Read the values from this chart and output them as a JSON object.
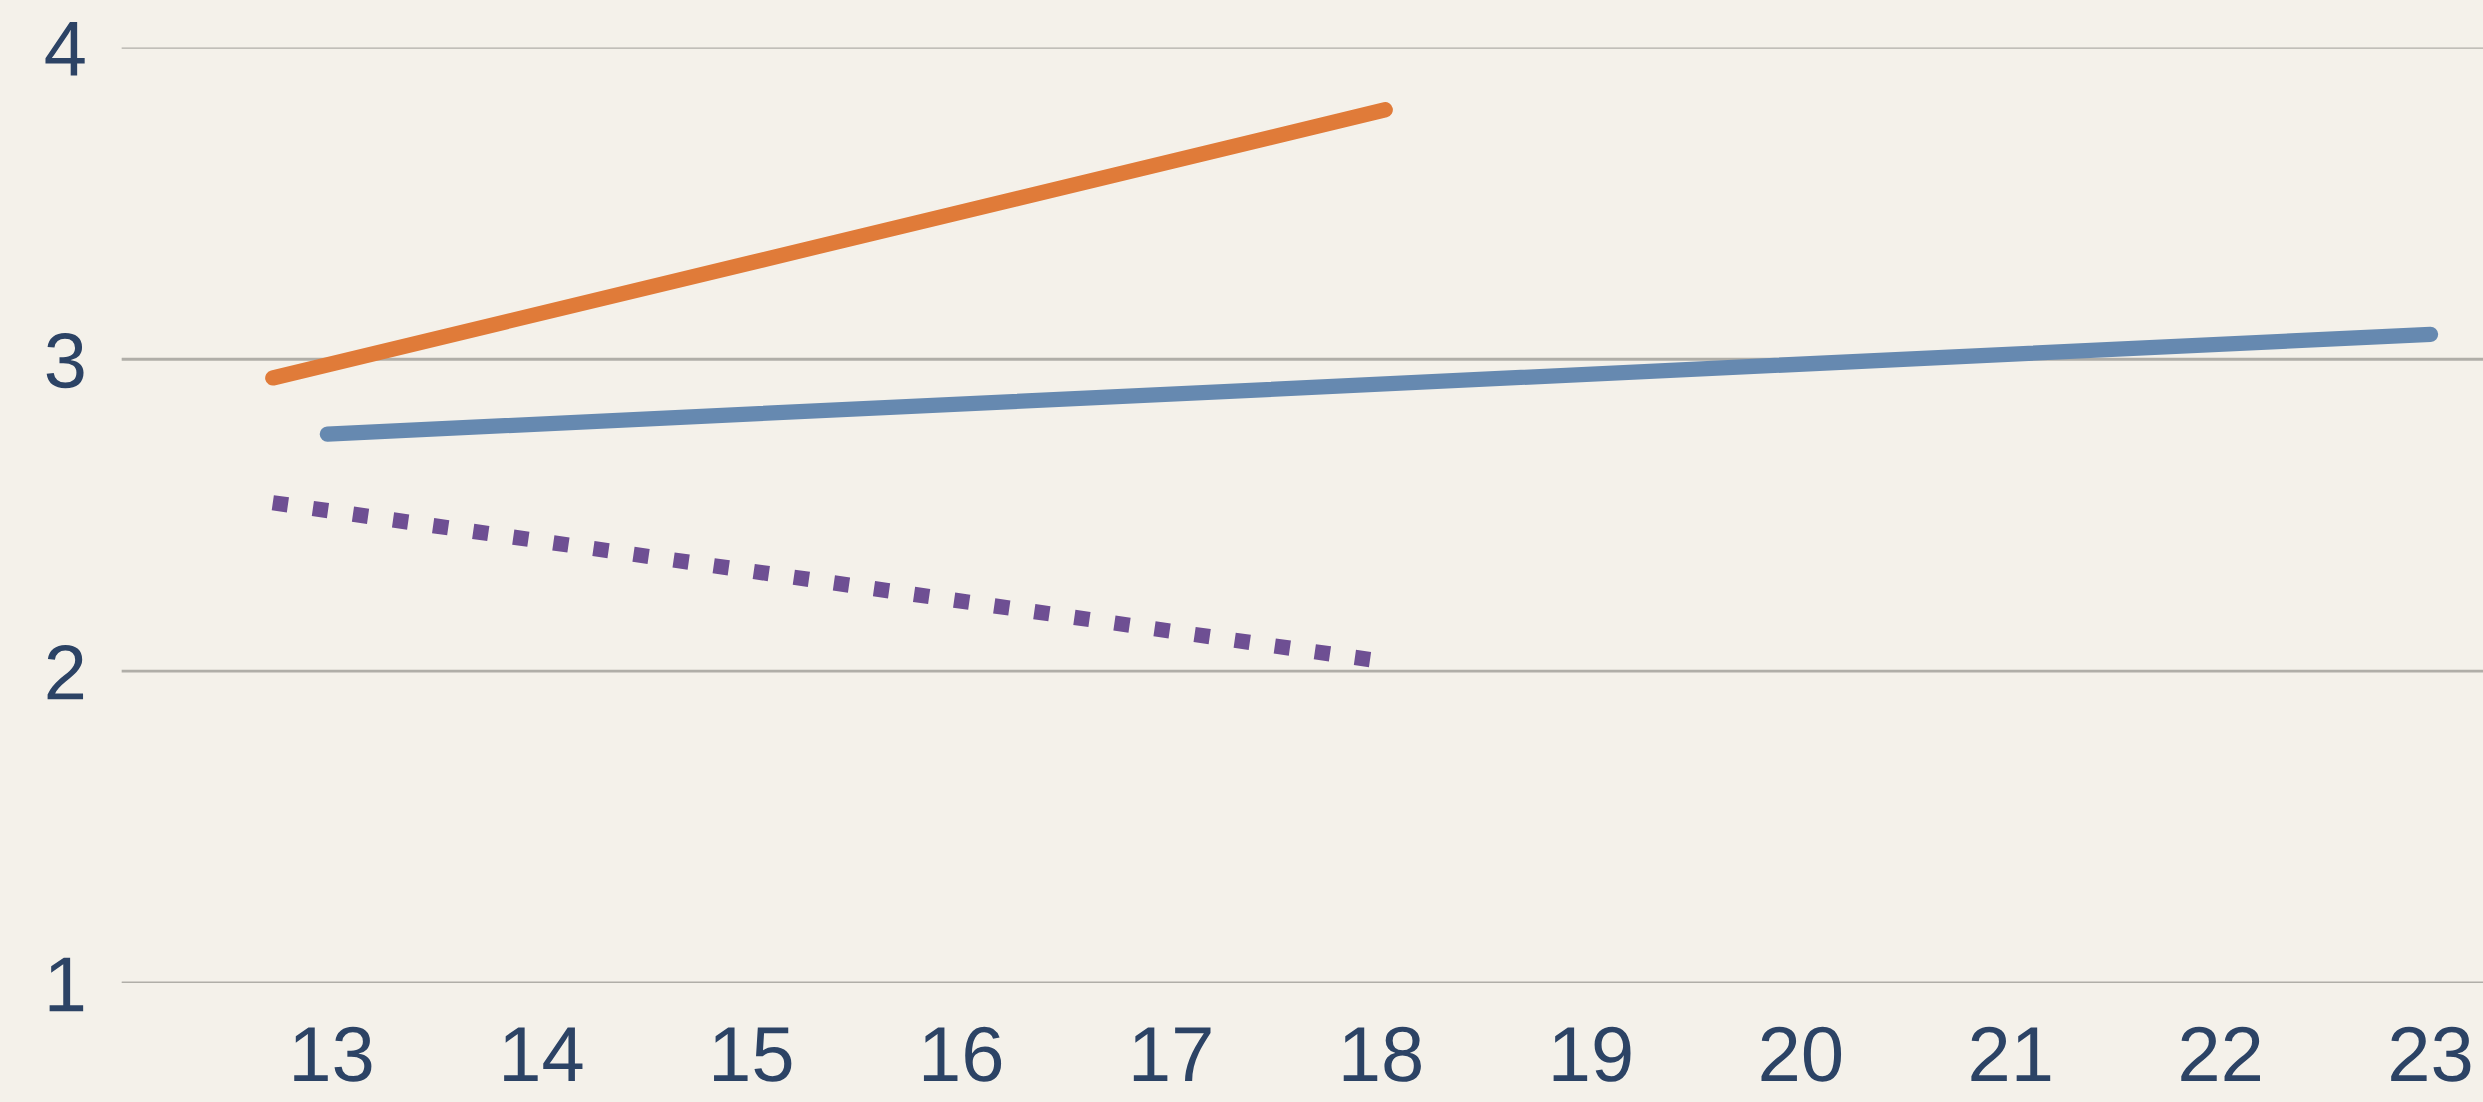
{
  "chart_data": {
    "type": "line",
    "xlim": [
      12,
      23.25
    ],
    "xticks": [
      13,
      14,
      15,
      16,
      17,
      18,
      19,
      20,
      21,
      22,
      23
    ],
    "ylim": [
      1,
      4
    ],
    "yticks": [
      1,
      2,
      3,
      4
    ],
    "grid": "y",
    "marker": "none",
    "series": [
      {
        "color": "#e07b39",
        "x": [
          12.72,
          18.02
        ],
        "values": [
          2.94,
          3.8
        ],
        "line_style": "solid"
      },
      {
        "color": "#6689b0",
        "x": [
          12.98,
          23.0
        ],
        "values": [
          2.76,
          3.08
        ],
        "line_style": "solid"
      },
      {
        "color": "#6e4f93",
        "x": [
          12.72,
          18.02
        ],
        "values": [
          2.54,
          2.03
        ],
        "line_style": "dotted"
      }
    ]
  }
}
